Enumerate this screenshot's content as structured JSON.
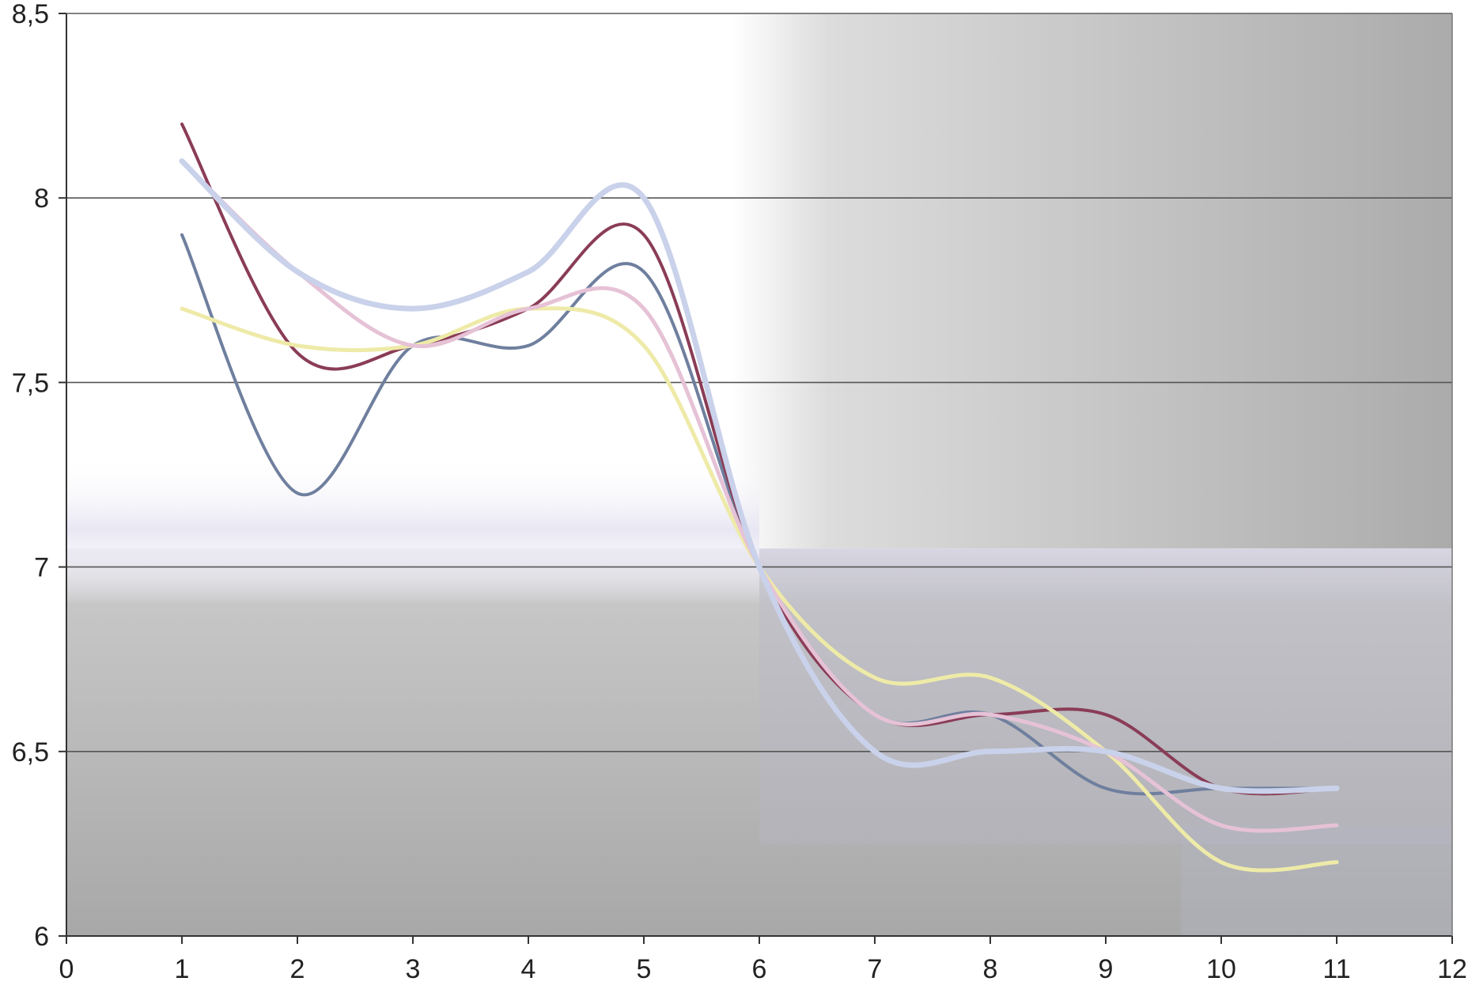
{
  "chart_data": {
    "type": "line",
    "title": "",
    "xlabel": "",
    "ylabel": "",
    "xlim": [
      0,
      12
    ],
    "ylim": [
      6,
      8.5
    ],
    "x_ticks": [
      {
        "value": 0,
        "label": "0"
      },
      {
        "value": 1,
        "label": "1"
      },
      {
        "value": 2,
        "label": "2"
      },
      {
        "value": 3,
        "label": "3"
      },
      {
        "value": 4,
        "label": "4"
      },
      {
        "value": 5,
        "label": "5"
      },
      {
        "value": 6,
        "label": "6"
      },
      {
        "value": 7,
        "label": "7"
      },
      {
        "value": 8,
        "label": "8"
      },
      {
        "value": 9,
        "label": "9"
      },
      {
        "value": 10,
        "label": "10"
      },
      {
        "value": 11,
        "label": "11"
      },
      {
        "value": 12,
        "label": "12"
      }
    ],
    "y_ticks": [
      {
        "value": 6,
        "label": "6"
      },
      {
        "value": 6.5,
        "label": "6,5"
      },
      {
        "value": 7,
        "label": "7"
      },
      {
        "value": 7.5,
        "label": "7,5"
      },
      {
        "value": 8,
        "label": "8"
      },
      {
        "value": 8.5,
        "label": "8,5"
      }
    ],
    "grid": {
      "horizontal": true,
      "vertical": false
    },
    "legend": "none",
    "x": [
      1,
      2,
      3,
      4,
      5,
      6,
      7,
      8,
      9,
      10,
      11
    ],
    "series": [
      {
        "color": "#6f7f9e",
        "values": [
          7.9,
          7.2,
          7.6,
          7.6,
          7.8,
          7.0,
          6.6,
          6.6,
          6.4,
          6.4,
          6.4
        ]
      },
      {
        "color": "#8a3c56",
        "values": [
          8.2,
          7.58,
          7.6,
          7.7,
          7.9,
          7.0,
          6.6,
          6.6,
          6.6,
          6.4,
          6.4
        ]
      },
      {
        "color": "#eeeaa8",
        "values": [
          7.7,
          7.6,
          7.6,
          7.7,
          7.6,
          7.0,
          6.7,
          6.7,
          6.5,
          6.2,
          6.2
        ]
      },
      {
        "color": "#e6c2d6",
        "values": [
          8.1,
          7.8,
          7.6,
          7.7,
          7.7,
          7.0,
          6.6,
          6.6,
          6.5,
          6.3,
          6.3
        ]
      },
      {
        "color": "#c9d2ea",
        "values": [
          8.1,
          7.8,
          7.7,
          7.8,
          8.0,
          7.0,
          6.5,
          6.5,
          6.5,
          6.4,
          6.4
        ]
      }
    ]
  }
}
